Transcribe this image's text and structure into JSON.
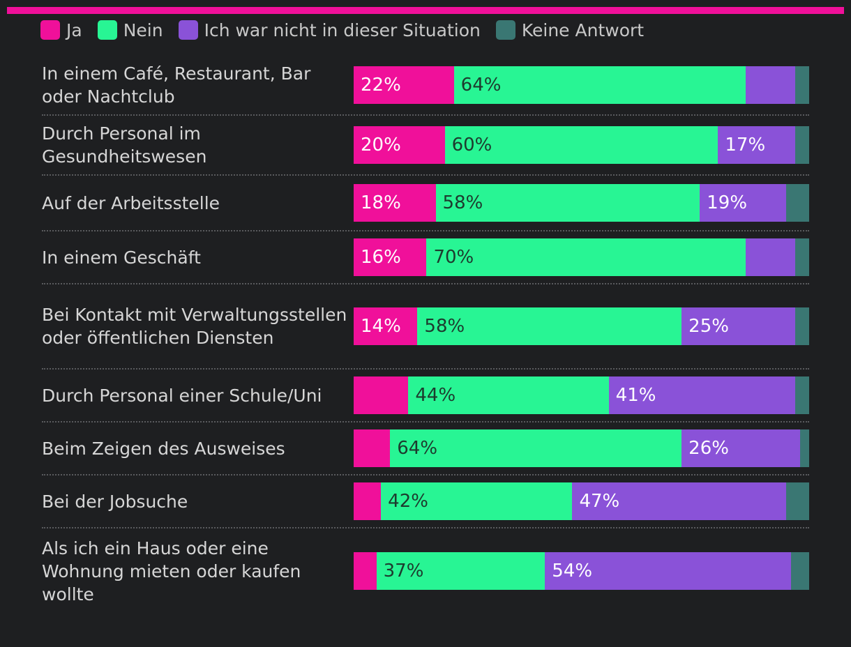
{
  "colors": {
    "accent_bar": "#f0109a",
    "background": "#1e1f21",
    "ja": "#f0109a",
    "nein": "#28f594",
    "nicht": "#8a52d8",
    "keine": "#3a7773",
    "label_on_pink": "#ffffff",
    "label_on_green": "#1d3b2e",
    "label_on_purple": "#ffffff"
  },
  "chart_data": {
    "type": "bar",
    "orientation": "horizontal",
    "stacked": true,
    "xlim": [
      0,
      100
    ],
    "legend": {
      "placement": "top-left",
      "items": [
        {
          "key": "ja",
          "label": "Ja"
        },
        {
          "key": "nein",
          "label": "Nein"
        },
        {
          "key": "nicht",
          "label": "Ich war nicht in dieser Situation"
        },
        {
          "key": "keine",
          "label": "Keine Antwort"
        }
      ]
    },
    "categories": [
      "In einem Café, Restaurant, Bar oder Nachtclub",
      "Durch Personal im Gesundheitswesen",
      "Auf der Arbeitsstelle",
      "In einem Geschäft",
      "Bei Kontakt mit Verwaltungsstellen oder öffentlichen Diensten",
      "Durch Personal einer Schule/Uni",
      "Beim Zeigen des Ausweises",
      "Bei der Jobsuche",
      "Als ich ein Haus oder eine Wohnung mieten oder kaufen wollte"
    ],
    "series": [
      {
        "key": "ja",
        "name": "Ja",
        "values": [
          22,
          20,
          18,
          16,
          14,
          12,
          8,
          6,
          5
        ],
        "labels": [
          "22%",
          "20%",
          "18%",
          "16%",
          "14%",
          "",
          "",
          "",
          ""
        ]
      },
      {
        "key": "nein",
        "name": "Nein",
        "values": [
          64,
          60,
          58,
          70,
          58,
          44,
          64,
          42,
          37
        ],
        "labels": [
          "64%",
          "60%",
          "58%",
          "70%",
          "58%",
          "44%",
          "64%",
          "42%",
          "37%"
        ]
      },
      {
        "key": "nicht",
        "name": "Ich war nicht in dieser Situation",
        "values": [
          11,
          17,
          19,
          11,
          25,
          41,
          26,
          47,
          54
        ],
        "labels": [
          "",
          "17%",
          "19%",
          "",
          "25%",
          "41%",
          "26%",
          "47%",
          "54%"
        ]
      },
      {
        "key": "keine",
        "name": "Keine Antwort",
        "values": [
          3,
          3,
          5,
          3,
          3,
          3,
          2,
          5,
          4
        ],
        "labels": [
          "",
          "",
          "",
          "",
          "",
          "",
          "",
          "",
          ""
        ]
      }
    ]
  }
}
